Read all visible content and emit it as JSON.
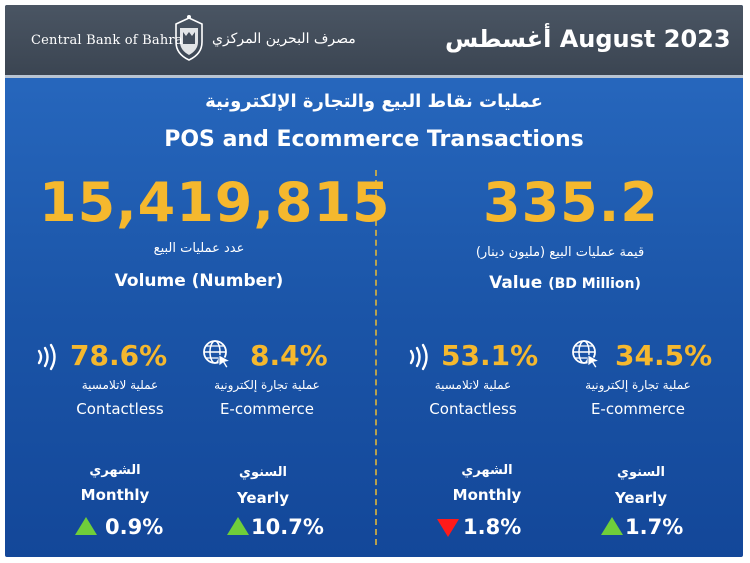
{
  "header": {
    "bank_name_en": "Central Bank of Bahrain",
    "bank_name_ar": "مصرف البحرين المركزي",
    "period": "August 2023",
    "period_ar": "أغسطس"
  },
  "title": {
    "ar": "عمليات نقاط البيع والتجارة الإلكترونية",
    "en": "POS and Ecommerce Transactions"
  },
  "volume": {
    "value": "15,419,815",
    "label_ar": "عدد عمليات البيع",
    "label_en": "Volume (Number)",
    "contactless": {
      "pct": "78.6%",
      "label_ar": "عملية لاتلامسية",
      "label_en": "Contactless",
      "icon": "contactless-icon"
    },
    "ecommerce": {
      "pct": "8.4%",
      "label_ar": "عملية تجارة إلكترونية",
      "label_en": "E-commerce",
      "icon": "globe-cursor-icon"
    },
    "monthly": {
      "label_ar": "الشهري",
      "label_en": "Monthly",
      "change": "0.9%",
      "direction": "up"
    },
    "yearly": {
      "label_ar": "السنوي",
      "label_en": "Yearly",
      "change": "10.7%",
      "direction": "up"
    }
  },
  "value": {
    "value": "335.2",
    "label_ar": "قيمة عمليات البيع (مليون دينار)",
    "label_en": "Value",
    "label_en_unit": "(BD Million)",
    "contactless": {
      "pct": "53.1%",
      "label_ar": "عملية لاتلامسية",
      "label_en": "Contactless",
      "icon": "contactless-icon"
    },
    "ecommerce": {
      "pct": "34.5%",
      "label_ar": "عملية تجارة إلكترونية",
      "label_en": "E-commerce",
      "icon": "globe-cursor-icon"
    },
    "monthly": {
      "label_ar": "الشهري",
      "label_en": "Monthly",
      "change": "1.8%",
      "direction": "down"
    },
    "yearly": {
      "label_ar": "السنوي",
      "label_en": "Yearly",
      "change": "1.7%",
      "direction": "up"
    }
  },
  "colors": {
    "accent": "#f5b82e",
    "up": "#6fce3a",
    "down": "#ff1a1a",
    "background": "#1b55a8",
    "header": "#434d5a"
  }
}
